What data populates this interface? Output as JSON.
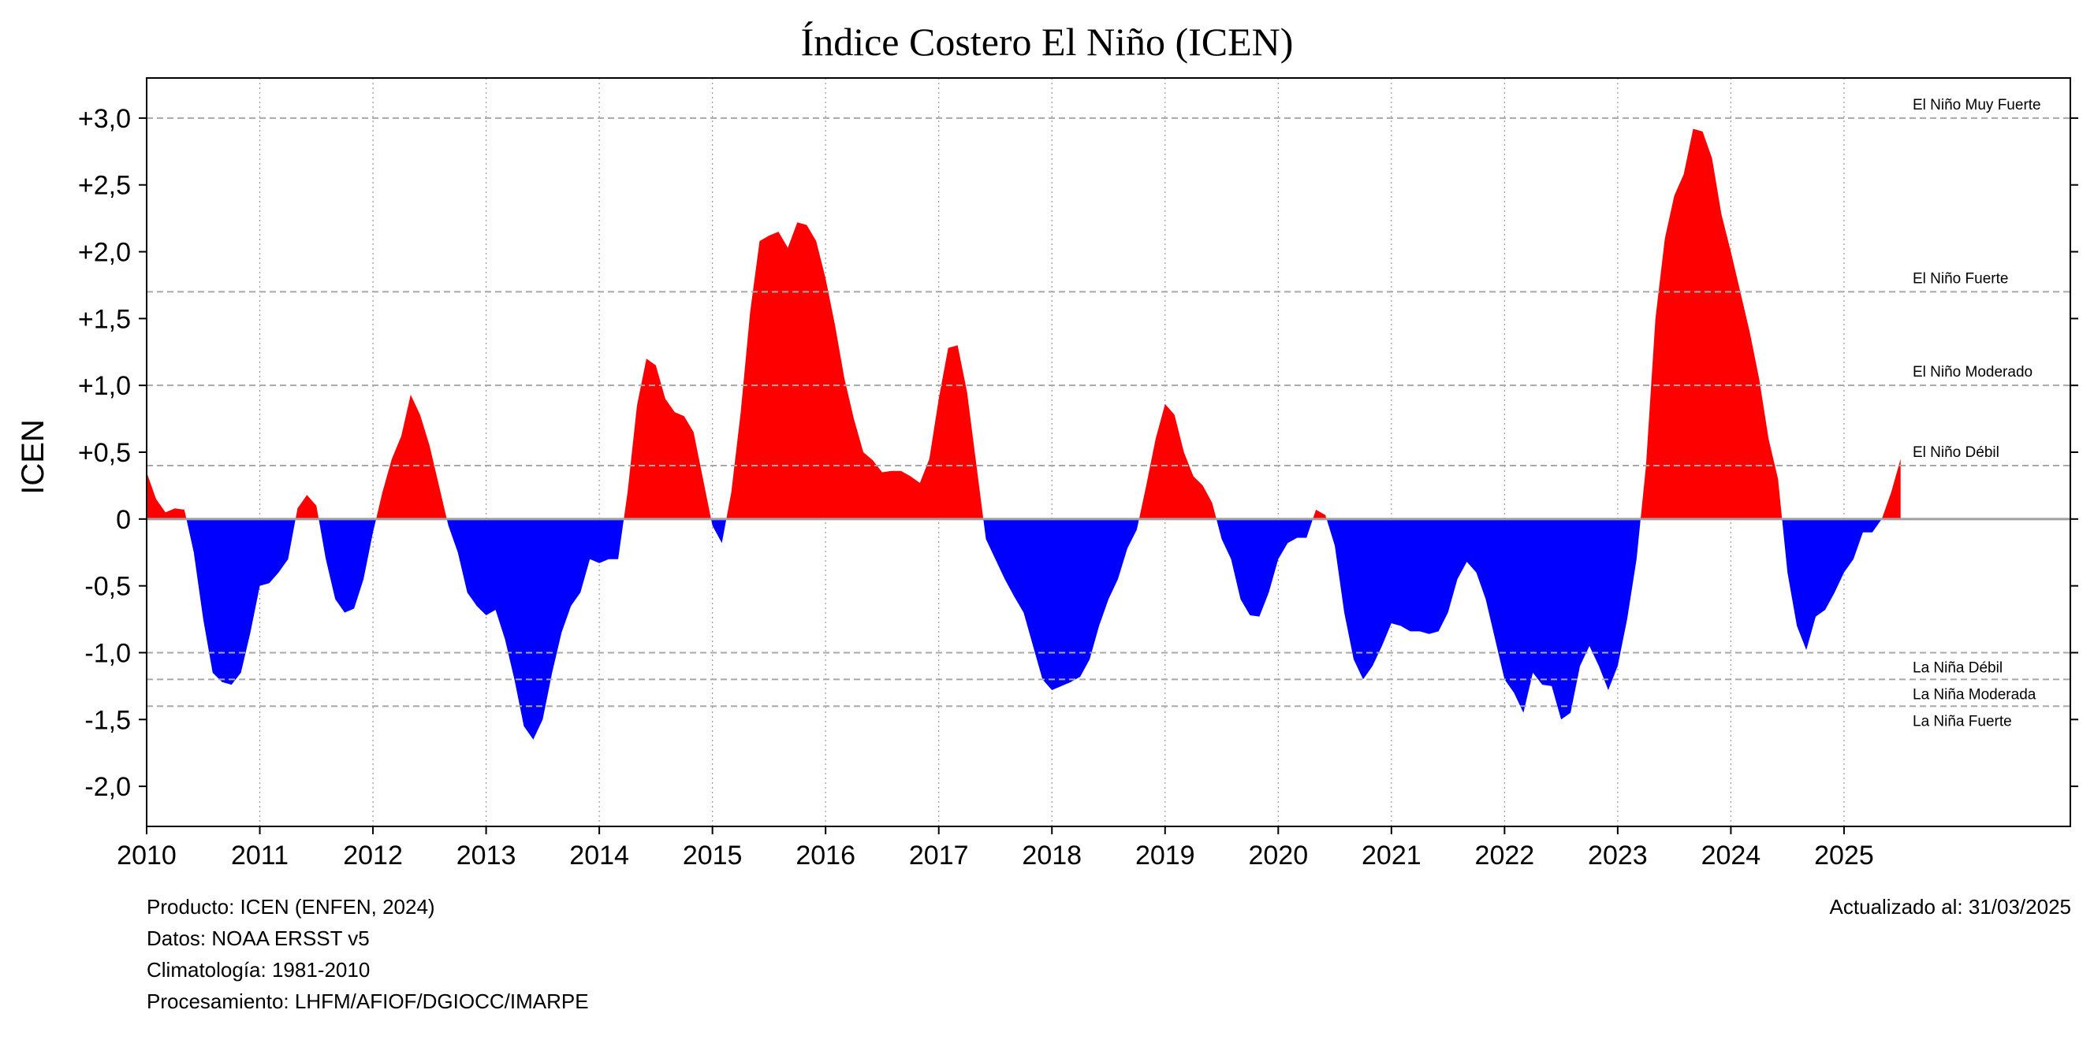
{
  "chart_data": {
    "type": "area",
    "title": "Índice Costero El Niño (ICEN)",
    "ylabel": "ICEN",
    "xlabel": "",
    "xlim": [
      2010.0,
      2027.0
    ],
    "ylim": [
      -2.3,
      3.3
    ],
    "x_ticks": [
      2010,
      2011,
      2012,
      2013,
      2014,
      2015,
      2016,
      2017,
      2018,
      2019,
      2020,
      2021,
      2022,
      2023,
      2024,
      2025
    ],
    "y_ticks": [
      {
        "value": 3.0,
        "label": "+3,0"
      },
      {
        "value": 2.5,
        "label": "+2,5"
      },
      {
        "value": 2.0,
        "label": "+2,0"
      },
      {
        "value": 1.5,
        "label": "+1,5"
      },
      {
        "value": 1.0,
        "label": "+1,0"
      },
      {
        "value": 0.5,
        "label": "+0,5"
      },
      {
        "value": 0.0,
        "label": "0"
      },
      {
        "value": -0.5,
        "label": "-0,5"
      },
      {
        "value": -1.0,
        "label": "-1,0"
      },
      {
        "value": -1.5,
        "label": "-1,5"
      },
      {
        "value": -2.0,
        "label": "-2,0"
      }
    ],
    "positive_color": "#ff0000",
    "negative_color": "#0000ff",
    "thresholds": [
      {
        "value": 3.0,
        "label": "El Niño Muy Fuerte",
        "label_side": "above"
      },
      {
        "value": 1.7,
        "label": "El Niño Fuerte",
        "label_side": "above"
      },
      {
        "value": 1.0,
        "label": "El Niño Moderado",
        "label_side": "above"
      },
      {
        "value": 0.4,
        "label": "El Niño Débil",
        "label_side": "above"
      },
      {
        "value": -1.0,
        "label": "La Niña Débil",
        "label_side": "below"
      },
      {
        "value": -1.2,
        "label": "La Niña Moderada",
        "label_side": "below"
      },
      {
        "value": -1.4,
        "label": "La Niña Fuerte",
        "label_side": "below"
      }
    ],
    "start": "2010-01",
    "series": [
      {
        "values": [
          0.35,
          0.15,
          0.05,
          0.08,
          0.07,
          -0.25,
          -0.75,
          -1.15,
          -1.22,
          -1.24,
          -1.15,
          -0.85,
          -0.5,
          -0.48,
          -0.4,
          -0.3,
          0.08,
          0.18,
          0.1,
          -0.3,
          -0.6,
          -0.7,
          -0.67,
          -0.45,
          -0.1,
          0.2,
          0.45,
          0.62,
          0.93,
          0.78,
          0.55,
          0.25,
          -0.05,
          -0.25,
          -0.55,
          -0.65,
          -0.72,
          -0.68,
          -0.9,
          -1.2,
          -1.55,
          -1.65,
          -1.5,
          -1.15,
          -0.85,
          -0.65,
          -0.55,
          -0.3,
          -0.33,
          -0.3,
          -0.3,
          0.2,
          0.85,
          1.2,
          1.15,
          0.9,
          0.8,
          0.77,
          0.65,
          0.3,
          -0.05,
          -0.18,
          0.2,
          0.8,
          1.55,
          2.08,
          2.12,
          2.15,
          2.03,
          2.22,
          2.2,
          2.08,
          1.8,
          1.45,
          1.05,
          0.75,
          0.5,
          0.44,
          0.35,
          0.36,
          0.36,
          0.32,
          0.27,
          0.45,
          0.9,
          1.28,
          1.3,
          0.95,
          0.4,
          -0.15,
          -0.3,
          -0.45,
          -0.58,
          -0.7,
          -0.95,
          -1.2,
          -1.28,
          -1.25,
          -1.22,
          -1.18,
          -1.05,
          -0.8,
          -0.6,
          -0.45,
          -0.22,
          -0.08,
          0.25,
          0.6,
          0.86,
          0.78,
          0.5,
          0.32,
          0.25,
          0.12,
          -0.15,
          -0.3,
          -0.6,
          -0.72,
          -0.73,
          -0.55,
          -0.3,
          -0.18,
          -0.14,
          -0.14,
          0.07,
          0.03,
          -0.2,
          -0.7,
          -1.05,
          -1.2,
          -1.1,
          -0.95,
          -0.78,
          -0.8,
          -0.84,
          -0.84,
          -0.86,
          -0.84,
          -0.7,
          -0.45,
          -0.32,
          -0.4,
          -0.6,
          -0.9,
          -1.2,
          -1.3,
          -1.45,
          -1.15,
          -1.24,
          -1.25,
          -1.5,
          -1.45,
          -1.1,
          -0.95,
          -1.1,
          -1.28,
          -1.1,
          -0.75,
          -0.3,
          0.4,
          1.5,
          2.1,
          2.42,
          2.58,
          2.92,
          2.9,
          2.7,
          2.28,
          2.0,
          1.7,
          1.4,
          1.05,
          0.6,
          0.3,
          -0.4,
          -0.8,
          -0.98,
          -0.73,
          -0.68,
          -0.55,
          -0.4,
          -0.3,
          -0.1,
          -0.1,
          0.0,
          0.2,
          0.45
        ]
      }
    ]
  },
  "footer": {
    "lines": [
      "Producto: ICEN (ENFEN, 2024)",
      "Datos: NOAA ERSST v5",
      "Climatología: 1981-2010",
      "Procesamiento: LHFM/AFIOF/DGIOCC/IMARPE"
    ],
    "updated": "Actualizado al: 31/03/2025"
  }
}
